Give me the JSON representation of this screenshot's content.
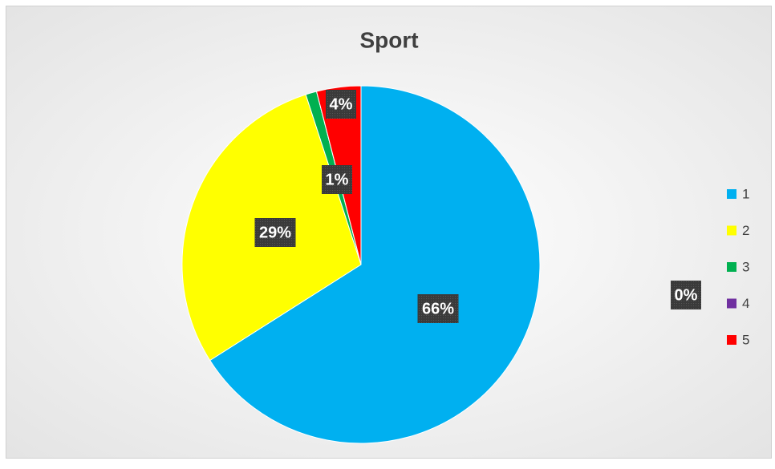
{
  "chart_data": {
    "type": "pie",
    "title": "Sport",
    "categories": [
      "1",
      "2",
      "3",
      "4",
      "5"
    ],
    "values": [
      66,
      29,
      1,
      0,
      4
    ],
    "value_labels": [
      "66%",
      "29%",
      "1%",
      "0%",
      "4%"
    ],
    "colors": [
      "#00b0f0",
      "#ffff00",
      "#00b050",
      "#7030a0",
      "#ff0000"
    ],
    "legend": "right"
  }
}
